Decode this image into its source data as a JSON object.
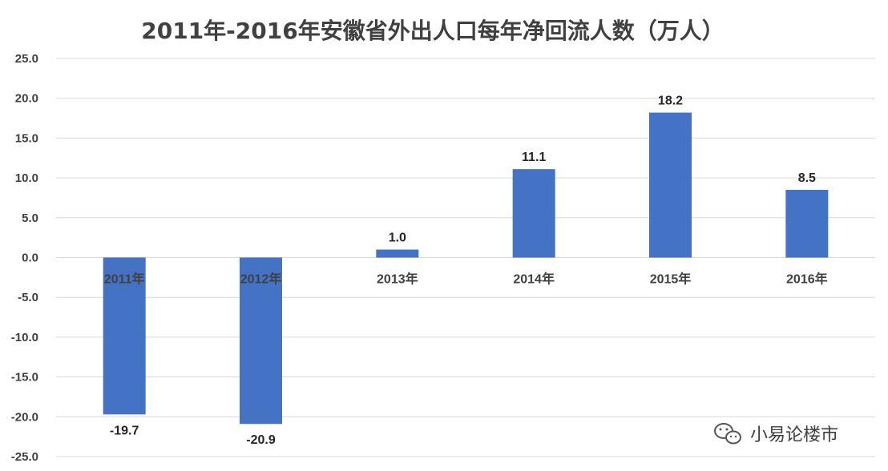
{
  "chart_data": {
    "type": "bar",
    "title": "2011年-2016年安徽省外出人口每年净回流人数（万人）",
    "categories": [
      "2011年",
      "2012年",
      "2013年",
      "2014年",
      "2015年",
      "2016年"
    ],
    "values": [
      -19.7,
      -20.9,
      1.0,
      11.1,
      18.2,
      8.5
    ],
    "data_labels": [
      "-19.7",
      "-20.9",
      "1.0",
      "11.1",
      "18.2",
      "8.5"
    ],
    "y_ticks": [
      "25.0",
      "20.0",
      "15.0",
      "10.0",
      "5.0",
      "0.0",
      "-5.0",
      "-10.0",
      "-15.0",
      "-20.0",
      "-25.0"
    ],
    "ylim": [
      -25,
      25
    ],
    "grid": true,
    "legend": "none",
    "bar_color": "#4472c4"
  },
  "watermark": {
    "text": "小易论楼市",
    "icon": "wechat-icon"
  }
}
